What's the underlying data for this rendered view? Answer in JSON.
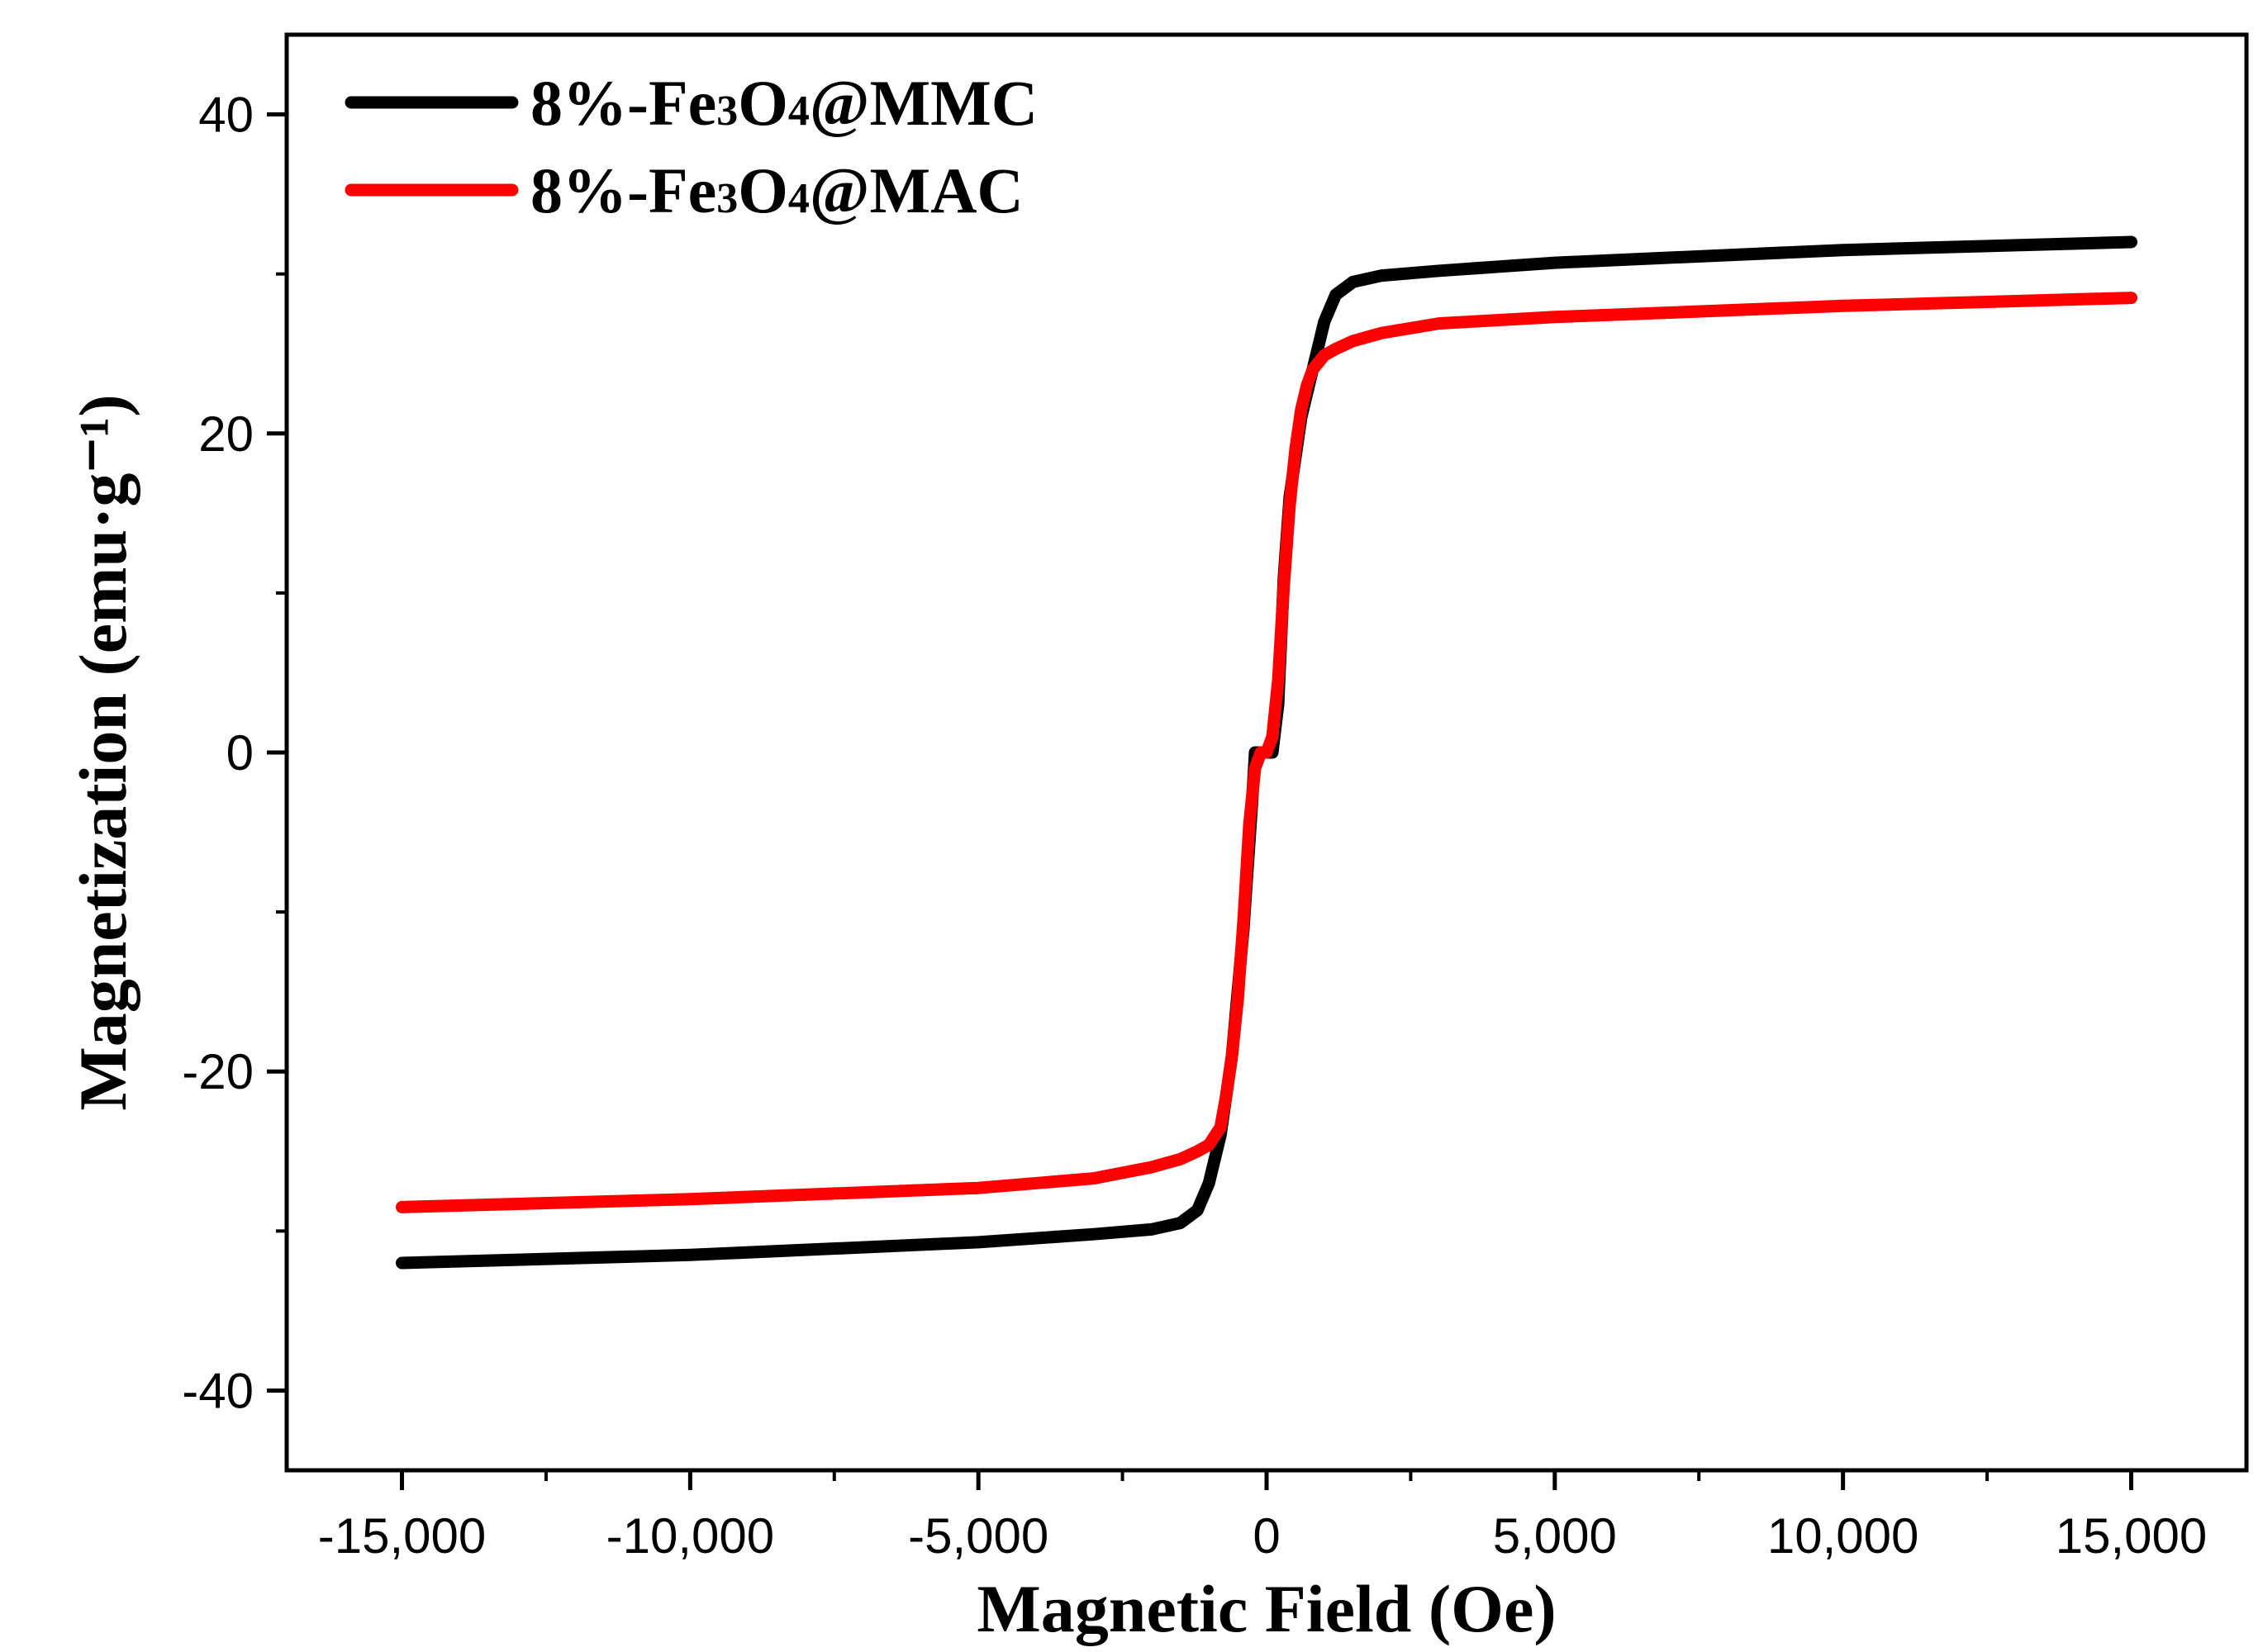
{
  "chart_data": {
    "type": "line",
    "title": "",
    "xlabel": "Magnetic Field (Oe)",
    "ylabel": "Magnetization (emu·g⁻¹)",
    "xlim": [
      -17000,
      17000
    ],
    "ylim": [
      -45,
      45
    ],
    "xticks": [
      -15000,
      -10000,
      -5000,
      0,
      5000,
      10000,
      15000
    ],
    "xtick_labels": [
      "-15,000",
      "-10,000",
      "-5,000",
      "0",
      "5,000",
      "10,000",
      "15,000"
    ],
    "yticks": [
      -40,
      -20,
      0,
      20,
      40
    ],
    "ytick_labels": [
      "-40",
      "-20",
      "0",
      "20",
      "40"
    ],
    "grid": false,
    "legend_position": "top-left",
    "series": [
      {
        "name": "8%-Fe3O4@MMC",
        "legend_parts": [
          "8%-Fe",
          "3",
          "O",
          "4",
          "@MMC"
        ],
        "color": "#000000",
        "x": [
          -15000,
          -10000,
          -5000,
          -3000,
          -2000,
          -1500,
          -1200,
          -1000,
          -800,
          -600,
          -400,
          -250,
          -200,
          -100,
          0,
          100,
          200,
          300,
          400,
          600,
          800,
          1000,
          1200,
          1500,
          2000,
          3000,
          5000,
          10000,
          15000
        ],
        "y": [
          -32.0,
          -31.5,
          -30.7,
          -30.2,
          -29.9,
          -29.5,
          -28.7,
          -27.0,
          -24.0,
          -19.0,
          -11.0,
          -3.0,
          0.0,
          0.0,
          0.0,
          0.0,
          3.0,
          11.0,
          16.0,
          21.0,
          24.0,
          27.0,
          28.7,
          29.5,
          29.9,
          30.2,
          30.7,
          31.5,
          32.0
        ]
      },
      {
        "name": "8%-Fe3O4@MAC",
        "legend_parts": [
          "8%-Fe",
          "3",
          "O",
          "4",
          "@MAC"
        ],
        "color": "#ff0000",
        "x": [
          -15000,
          -10000,
          -5000,
          -3000,
          -2000,
          -1500,
          -1200,
          -1000,
          -800,
          -700,
          -600,
          -500,
          -400,
          -300,
          -200,
          -100,
          0,
          100,
          200,
          300,
          400,
          500,
          600,
          700,
          800,
          1000,
          1200,
          1500,
          2000,
          3000,
          5000,
          10000,
          15000
        ],
        "y": [
          -28.5,
          -28.0,
          -27.3,
          -26.7,
          -26.0,
          -25.5,
          -25.0,
          -24.6,
          -23.5,
          -21.5,
          -19.0,
          -15.5,
          -10.5,
          -4.5,
          -1.0,
          0.0,
          0.0,
          1.0,
          4.5,
          10.5,
          15.5,
          19.0,
          21.5,
          23.0,
          24.0,
          24.9,
          25.3,
          25.8,
          26.3,
          26.9,
          27.3,
          28.0,
          28.5
        ]
      }
    ]
  }
}
